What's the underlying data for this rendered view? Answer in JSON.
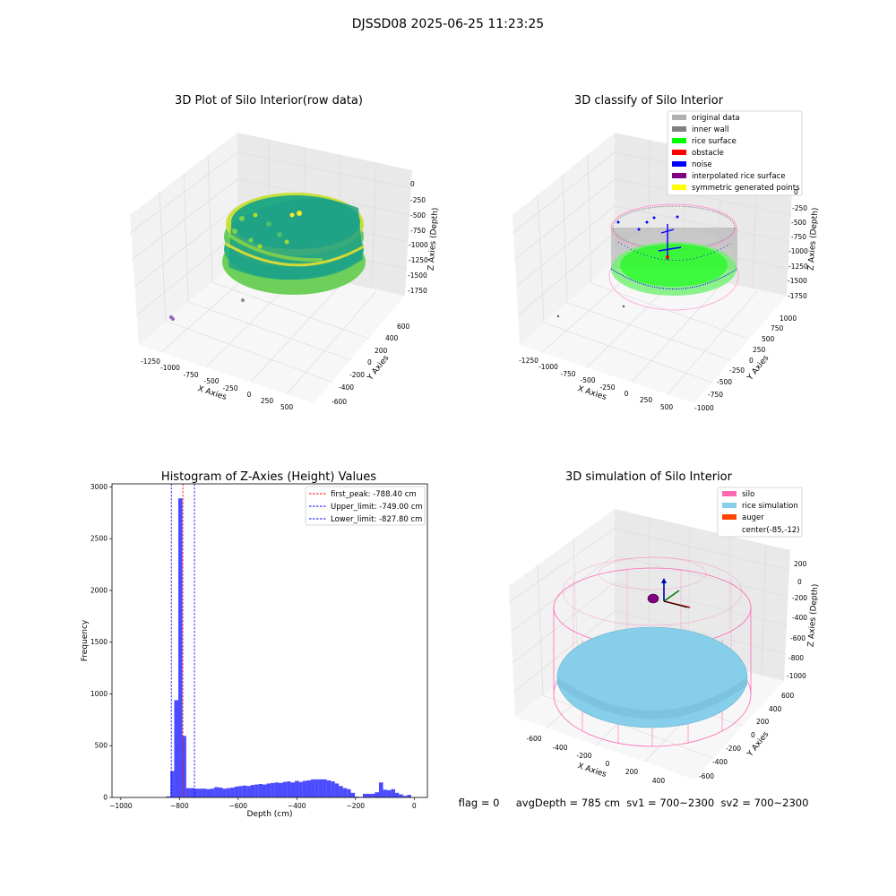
{
  "suptitle": "DJSSD08 2025-06-25 11:23:25",
  "status_line": "flag = 0     avgDepth = 785 cm  sv1 = 700~2300  sv2 = 700~2300",
  "chart_data": [
    {
      "id": "raw",
      "type": "scatter",
      "title": "3D Plot of Silo Interior(row data)",
      "xlabel": "X Axies",
      "ylabel": "Y Axies",
      "zlabel": "Z Axies (Depth)",
      "xticks": [
        "-1250",
        "-1000",
        "-750",
        "-500",
        "-250",
        "0",
        "250",
        "500"
      ],
      "yticks": [
        "-600",
        "-400",
        "-200",
        "0",
        "200",
        "400",
        "600"
      ],
      "zticks": [
        "0",
        "-250",
        "-500",
        "-750",
        "-1000",
        "-1250",
        "-1500",
        "-1750"
      ],
      "colormap": [
        "#440154",
        "#21918c",
        "#5ec962",
        "#fde725"
      ]
    },
    {
      "id": "classify",
      "type": "scatter",
      "title": "3D classify of Silo Interior",
      "xlabel": "X Axies",
      "ylabel": "Y Axies",
      "zlabel": "Z Axies (Depth)",
      "xticks": [
        "-1250",
        "-1000",
        "-750",
        "-500",
        "-250",
        "0",
        "250",
        "500"
      ],
      "yticks": [
        "-1000",
        "-750",
        "-500",
        "-250",
        "0",
        "250",
        "500",
        "750",
        "1000"
      ],
      "zticks": [
        "0",
        "-250",
        "-500",
        "-750",
        "-1000",
        "-1250",
        "-1500",
        "-1750"
      ],
      "legend_position": "top-right",
      "legend": [
        {
          "label": "original data",
          "color": "#b0b0b0"
        },
        {
          "label": "inner wall",
          "color": "#808080"
        },
        {
          "label": "rice surface",
          "color": "#00ff00"
        },
        {
          "label": "obstacle",
          "color": "#ff0000"
        },
        {
          "label": "noise",
          "color": "#0000ff"
        },
        {
          "label": "interpolated rice surface",
          "color": "#800080"
        },
        {
          "label": "symmetric generated points",
          "color": "#ffff00"
        }
      ]
    },
    {
      "id": "hist",
      "type": "bar",
      "title": "Histogram of Z-Axies (Height) Values",
      "xlabel": "Depth (cm)",
      "ylabel": "Frequency",
      "xlim": [
        -1030,
        45
      ],
      "ylim": [
        0,
        3030
      ],
      "xticks": [
        -1000,
        -800,
        -600,
        -400,
        -200,
        0
      ],
      "yticks": [
        0,
        500,
        1000,
        1500,
        2000,
        2500,
        3000
      ],
      "bar_color": "#0000ff",
      "bar_alpha": 0.7,
      "bins": [
        {
          "left": -845,
          "right": -831,
          "value": 10
        },
        {
          "left": -831,
          "right": -818,
          "value": 255
        },
        {
          "left": -818,
          "right": -804,
          "value": 940
        },
        {
          "left": -804,
          "right": -790,
          "value": 2890
        },
        {
          "left": -790,
          "right": -777,
          "value": 595
        },
        {
          "left": -777,
          "right": -763,
          "value": 90
        },
        {
          "left": -763,
          "right": -749,
          "value": 90
        },
        {
          "left": -749,
          "right": -735,
          "value": 85
        },
        {
          "left": -735,
          "right": -722,
          "value": 85
        },
        {
          "left": -722,
          "right": -708,
          "value": 85
        },
        {
          "left": -708,
          "right": -694,
          "value": 80
        },
        {
          "left": -694,
          "right": -681,
          "value": 85
        },
        {
          "left": -681,
          "right": -667,
          "value": 100
        },
        {
          "left": -667,
          "right": -653,
          "value": 95
        },
        {
          "left": -653,
          "right": -640,
          "value": 85
        },
        {
          "left": -640,
          "right": -626,
          "value": 90
        },
        {
          "left": -626,
          "right": -612,
          "value": 95
        },
        {
          "left": -612,
          "right": -599,
          "value": 105
        },
        {
          "left": -599,
          "right": -585,
          "value": 110
        },
        {
          "left": -585,
          "right": -571,
          "value": 115
        },
        {
          "left": -571,
          "right": -558,
          "value": 110
        },
        {
          "left": -558,
          "right": -544,
          "value": 120
        },
        {
          "left": -544,
          "right": -530,
          "value": 125
        },
        {
          "left": -530,
          "right": -517,
          "value": 130
        },
        {
          "left": -517,
          "right": -503,
          "value": 125
        },
        {
          "left": -503,
          "right": -489,
          "value": 135
        },
        {
          "left": -489,
          "right": -475,
          "value": 140
        },
        {
          "left": -475,
          "right": -462,
          "value": 145
        },
        {
          "left": -462,
          "right": -448,
          "value": 140
        },
        {
          "left": -448,
          "right": -434,
          "value": 150
        },
        {
          "left": -434,
          "right": -421,
          "value": 155
        },
        {
          "left": -421,
          "right": -407,
          "value": 145
        },
        {
          "left": -407,
          "right": -393,
          "value": 160
        },
        {
          "left": -393,
          "right": -380,
          "value": 150
        },
        {
          "left": -380,
          "right": -366,
          "value": 160
        },
        {
          "left": -366,
          "right": -352,
          "value": 165
        },
        {
          "left": -352,
          "right": -339,
          "value": 175
        },
        {
          "left": -339,
          "right": -325,
          "value": 175
        },
        {
          "left": -325,
          "right": -311,
          "value": 175
        },
        {
          "left": -311,
          "right": -298,
          "value": 175
        },
        {
          "left": -298,
          "right": -284,
          "value": 165
        },
        {
          "left": -284,
          "right": -270,
          "value": 155
        },
        {
          "left": -270,
          "right": -257,
          "value": 135
        },
        {
          "left": -257,
          "right": -243,
          "value": 110
        },
        {
          "left": -243,
          "right": -229,
          "value": 90
        },
        {
          "left": -229,
          "right": -216,
          "value": 80
        },
        {
          "left": -216,
          "right": -202,
          "value": 45
        },
        {
          "left": -202,
          "right": -188,
          "value": 8
        },
        {
          "left": -188,
          "right": -175,
          "value": 5
        },
        {
          "left": -175,
          "right": -161,
          "value": 35
        },
        {
          "left": -161,
          "right": -147,
          "value": 35
        },
        {
          "left": -147,
          "right": -134,
          "value": 35
        },
        {
          "left": -134,
          "right": -120,
          "value": 50
        },
        {
          "left": -120,
          "right": -106,
          "value": 145
        },
        {
          "left": -106,
          "right": -93,
          "value": 75
        },
        {
          "left": -93,
          "right": -79,
          "value": 70
        },
        {
          "left": -79,
          "right": -65,
          "value": 80
        },
        {
          "left": -65,
          "right": -52,
          "value": 45
        },
        {
          "left": -52,
          "right": -38,
          "value": 30
        },
        {
          "left": -38,
          "right": -24,
          "value": 15
        },
        {
          "left": -24,
          "right": -10,
          "value": 25
        }
      ],
      "vlines": [
        {
          "x": -788.4,
          "label": "first_peak: -788.40 cm",
          "color": "#ff0000"
        },
        {
          "x": -749.0,
          "label": "Upper_limit: -749.00 cm",
          "color": "#0000ff"
        },
        {
          "x": -827.8,
          "label": "Lower_limit: -827.80 cm",
          "color": "#0000ff"
        }
      ],
      "legend_position": "top-right"
    },
    {
      "id": "sim",
      "type": "scatter",
      "title": "3D simulation of Silo Interior",
      "xlabel": "X Axies",
      "ylabel": "Y Axies",
      "zlabel": "Z Axies (Depth)",
      "xticks": [
        "-600",
        "-400",
        "-200",
        "0",
        "200",
        "400"
      ],
      "yticks": [
        "-600",
        "-400",
        "-200",
        "0",
        "200",
        "400",
        "600"
      ],
      "zticks": [
        "200",
        "0",
        "-200",
        "-400",
        "-600",
        "-800",
        "-1000"
      ],
      "legend_position": "top-right",
      "legend": [
        {
          "label": "silo",
          "color": "#ff69b4"
        },
        {
          "label": "rice simulation",
          "color": "#87ceeb"
        },
        {
          "label": "auger",
          "color": "#ff4500"
        },
        {
          "label": "center(-85,-12)",
          "color": "none"
        }
      ]
    }
  ]
}
